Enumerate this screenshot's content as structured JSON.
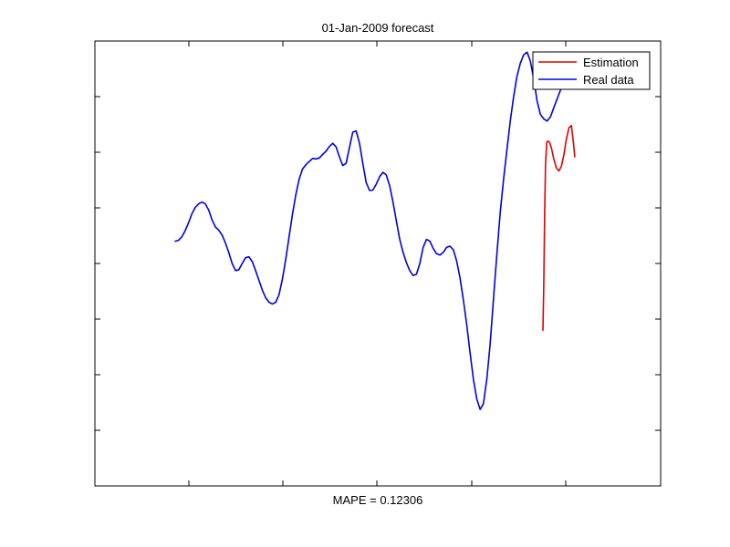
{
  "chart_data": {
    "type": "line",
    "title": "01-Jan-2009 forecast",
    "xlabel": "MAPE = 0.12306",
    "ylabel": "",
    "xlim": [
      0,
      100
    ],
    "ylim": [
      0,
      100
    ],
    "grid": false,
    "legend_position": "top-right",
    "series": [
      {
        "name": "Estimation",
        "color": "#e00000",
        "x": [
          87.8,
          88.0,
          88.2,
          88.4,
          88.7,
          89.0,
          89.4,
          89.8,
          90.4,
          91.0,
          91.6,
          92.2,
          92.8,
          93.4,
          94.0,
          94.6,
          95.1,
          95.4
        ],
        "y": [
          35,
          45,
          60,
          72,
          77.2,
          77.5,
          77.2,
          76.0,
          73.5,
          71.5,
          70.8,
          71.8,
          74.5,
          78.0,
          80.5,
          81.0,
          77.0,
          74.0
        ]
      },
      {
        "name": "Real data",
        "color": "#0000e0",
        "x": [
          0,
          0.8,
          1.6,
          2.4,
          3.2,
          4.0,
          4.8,
          5.6,
          6.4,
          7.2,
          8.0,
          8.8,
          9.6,
          10.4,
          11.2,
          12.0,
          12.8,
          13.6,
          14.4,
          15.2,
          16.0,
          16.8,
          17.6,
          18.4,
          19.2,
          20.0,
          20.8,
          21.6,
          22.4,
          23.2,
          24.0,
          24.8,
          25.6,
          26.4,
          27.2,
          28.0,
          28.8,
          29.6,
          30.4,
          31.2,
          32.0,
          32.8,
          33.6,
          34.4,
          35.2,
          36.0,
          36.8,
          37.6,
          38.4,
          39.2,
          40.0,
          40.8,
          41.6,
          42.4,
          43.2,
          44.0,
          44.8,
          45.6,
          46.4,
          47.2,
          48.0,
          48.8,
          49.6,
          50.4,
          51.2,
          52.0,
          52.8,
          53.6,
          54.4,
          55.2,
          56.0,
          56.8,
          57.6,
          58.4,
          59.2,
          60.0,
          60.8,
          61.6,
          62.4,
          63.2,
          64.0,
          64.8,
          65.6,
          66.4,
          67.2,
          68.0,
          68.8,
          69.6,
          70.4,
          71.2,
          72.0,
          72.8,
          73.6,
          74.4,
          75.2,
          76.0,
          76.8,
          77.6,
          78.4,
          79.2,
          80.0,
          80.8,
          81.6,
          82.4,
          83.2,
          84.0,
          84.8,
          85.6,
          86.4,
          87.2,
          88.0,
          88.8,
          89.6,
          90.4,
          91.2,
          92.0,
          92.8,
          93.6,
          94.4,
          95.2
        ],
        "y": [
          55.0,
          55.2,
          56.0,
          57.4,
          59.2,
          61.2,
          62.6,
          63.4,
          63.8,
          63.4,
          62.0,
          59.8,
          58.2,
          57.5,
          56.4,
          54.6,
          52.4,
          50.0,
          48.4,
          48.6,
          50.0,
          51.3,
          51.5,
          50.4,
          48.4,
          46.2,
          44.0,
          42.3,
          41.3,
          40.9,
          41.3,
          43.0,
          46.5,
          51.0,
          56.0,
          61.0,
          65.5,
          69.0,
          71.2,
          72.2,
          72.9,
          73.6,
          73.5,
          73.7,
          74.5,
          75.2,
          76.3,
          77.0,
          76.2,
          74.0,
          72.0,
          72.5,
          76.0,
          79.5,
          79.8,
          77.0,
          72.5,
          68.2,
          66.4,
          66.5,
          67.8,
          69.5,
          70.5,
          69.9,
          67.5,
          63.8,
          59.5,
          55.5,
          52.5,
          50.2,
          48.4,
          47.3,
          47.6,
          50.0,
          53.6,
          55.4,
          55.0,
          53.4,
          52.2,
          51.9,
          52.5,
          53.6,
          53.9,
          53.1,
          50.6,
          46.8,
          41.8,
          36.2,
          30.0,
          24.0,
          19.5,
          17.2,
          18.5,
          24.0,
          32.0,
          42.0,
          52.0,
          61.5,
          69.0,
          75.5,
          82.0,
          87.5,
          92.0,
          95.0,
          96.9,
          97.5,
          95.5,
          91.5,
          86.5,
          83.5,
          82.5,
          82.0,
          83.0,
          85.0,
          87.0,
          89.0,
          91.0,
          93.0,
          94.5,
          95.0
        ]
      }
    ]
  }
}
